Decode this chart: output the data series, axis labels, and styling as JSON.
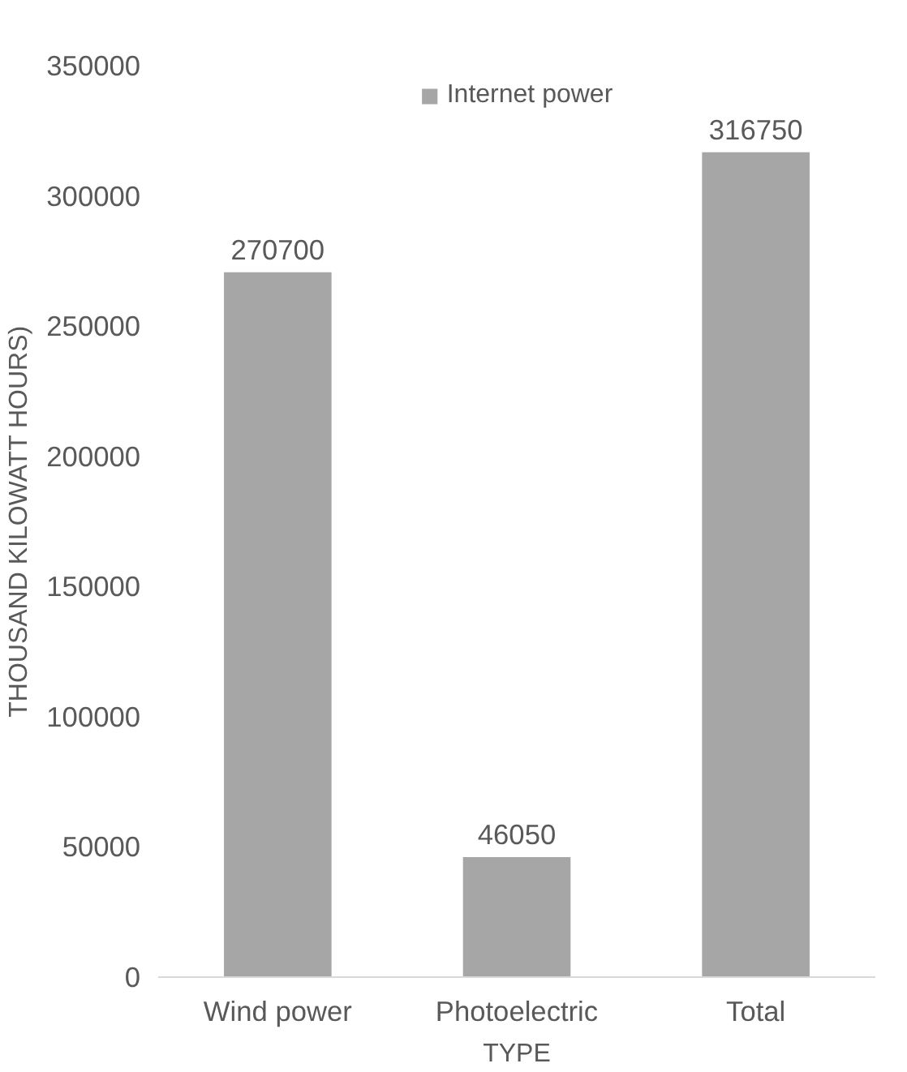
{
  "chart_data": {
    "type": "bar",
    "xlabel": "TYPE",
    "ylabel": "THOUSAND KILOWATT HOURS)",
    "categories": [
      "Wind power",
      "Photoelectric",
      "Total"
    ],
    "series": [
      {
        "name": "Internet power",
        "color": "#a6a6a6",
        "values": [
          270700,
          46050,
          316750
        ]
      }
    ],
    "ylim": [
      0,
      350000
    ],
    "yticks": [
      0,
      50000,
      100000,
      150000,
      200000,
      250000,
      300000,
      350000
    ],
    "grid": false,
    "legend": "top",
    "data_labels": true
  }
}
